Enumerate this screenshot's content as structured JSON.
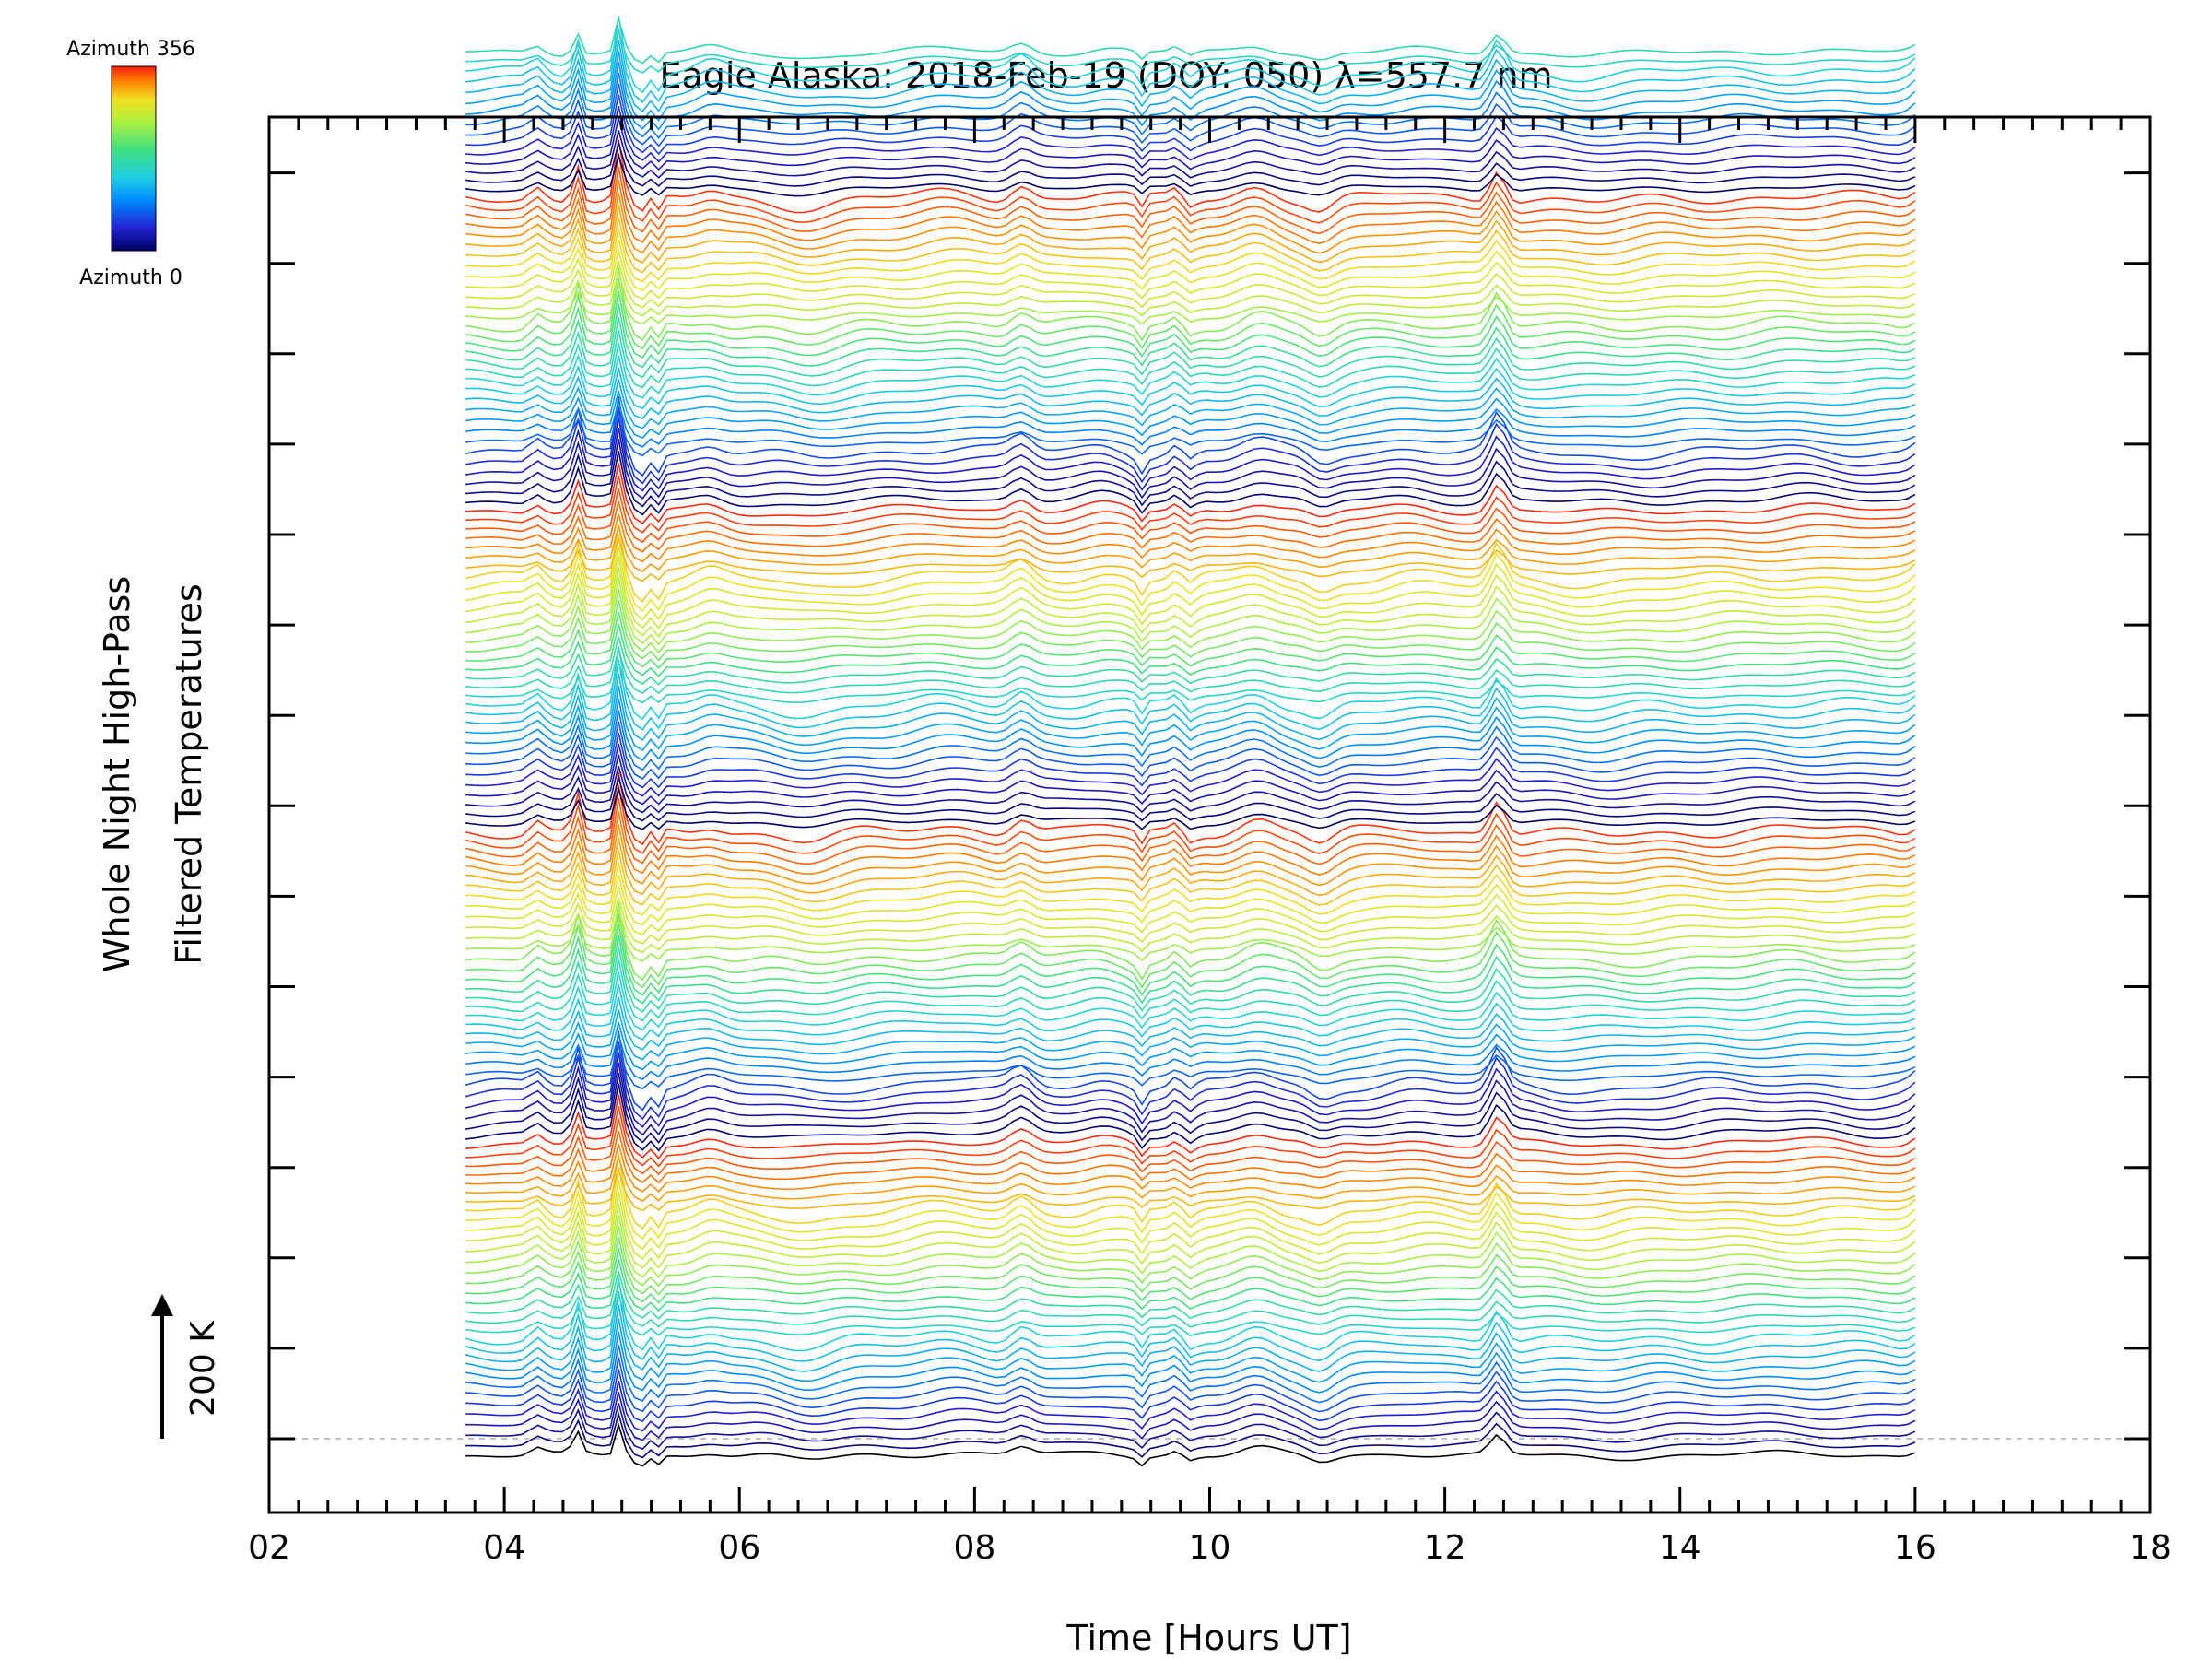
{
  "chart_data": {
    "type": "line",
    "title": "Eagle Alaska: 2018-Feb-19 (DOY: 050) λ=557.7 nm",
    "xlabel": "Time [Hours UT]",
    "ylabel_line1": "Whole Night High-Pass",
    "ylabel_line2": "Filtered Temperatures",
    "scale_bar_label": "200 K",
    "scale_bar_value": 200,
    "xlim": [
      2,
      18
    ],
    "x_ticks": [
      2,
      4,
      6,
      8,
      10,
      12,
      14,
      16,
      18
    ],
    "x_tick_labels": [
      "02",
      "04",
      "06",
      "08",
      "10",
      "12",
      "14",
      "16",
      "18"
    ],
    "colorbar": {
      "top_label": "Azimuth 356",
      "bottom_label": "Azimuth 0",
      "min": 0,
      "max": 356,
      "colors": [
        "#000060",
        "#2020d0",
        "#0090ff",
        "#20d0e0",
        "#40e080",
        "#b0f040",
        "#f0e020",
        "#ff8000",
        "#ff2010"
      ]
    },
    "series_count": 145,
    "series_spacing_K": 14,
    "azimuth_step": 11,
    "time_range": [
      3.67,
      16.0
    ],
    "baseline_color": "#aaaaaa"
  }
}
